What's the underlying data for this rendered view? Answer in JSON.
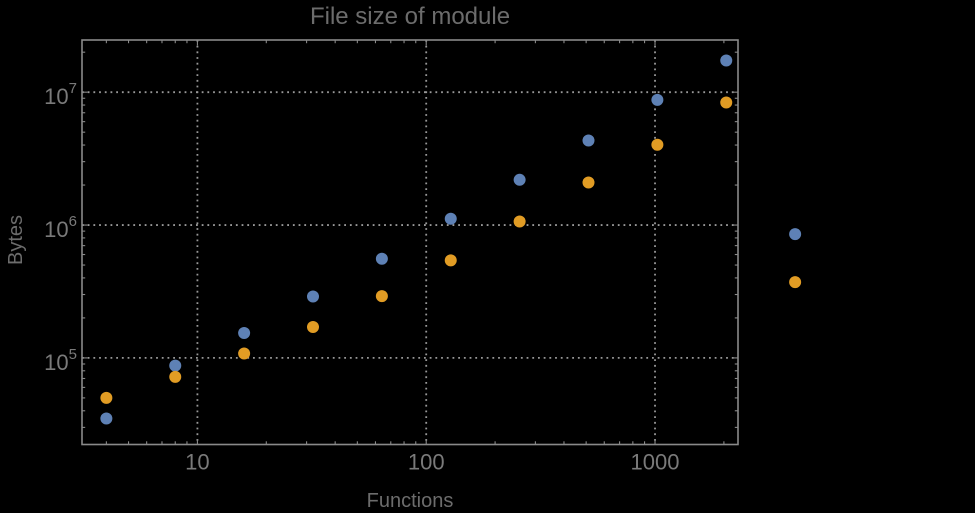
{
  "chart_data": {
    "type": "scatter",
    "title": "File size of module",
    "xlabel": "Functions",
    "ylabel": "Bytes",
    "xscale": "log",
    "yscale": "log",
    "xlim": [
      3.13,
      2305
    ],
    "ylim": [
      22300,
      24700000
    ],
    "grid": "dotted",
    "legend": "none",
    "x_ticks": [
      {
        "value": 10,
        "label": "10"
      },
      {
        "value": 100,
        "label": "100"
      },
      {
        "value": 1000,
        "label": "1000"
      }
    ],
    "y_ticks": [
      {
        "value": 100000,
        "base": "10",
        "exp": "5"
      },
      {
        "value": 1000000,
        "base": "10",
        "exp": "6"
      },
      {
        "value": 10000000,
        "base": "10",
        "exp": "7"
      }
    ],
    "series": [
      {
        "name": "blue-series",
        "color": "#5e81b5",
        "points": [
          [
            4,
            35000
          ],
          [
            8,
            87500
          ],
          [
            16,
            154000
          ],
          [
            32,
            290000
          ],
          [
            64,
            558000
          ],
          [
            128,
            1115000
          ],
          [
            256,
            2190000
          ],
          [
            512,
            4330000
          ],
          [
            1024,
            8750000
          ],
          [
            2048,
            17300000
          ],
          [
            4096,
            855000
          ]
        ]
      },
      {
        "name": "orange-series",
        "color": "#e19c24",
        "points": [
          [
            4,
            50000
          ],
          [
            8,
            72000
          ],
          [
            16,
            108000
          ],
          [
            32,
            171000
          ],
          [
            64,
            292000
          ],
          [
            128,
            542000
          ],
          [
            256,
            1064000
          ],
          [
            512,
            2090000
          ],
          [
            1024,
            4020000
          ],
          [
            2048,
            8360000
          ],
          [
            4096,
            372000
          ]
        ]
      }
    ]
  },
  "colors": {
    "background": "#000000",
    "frame": "#8a8a8a",
    "grid": "#989898",
    "tick_label": "#7a7a7a",
    "title": "#6c6c6c",
    "axis_label": "#6c6c6c",
    "point_blue": "#5e81b5",
    "point_orange": "#e19c24"
  }
}
